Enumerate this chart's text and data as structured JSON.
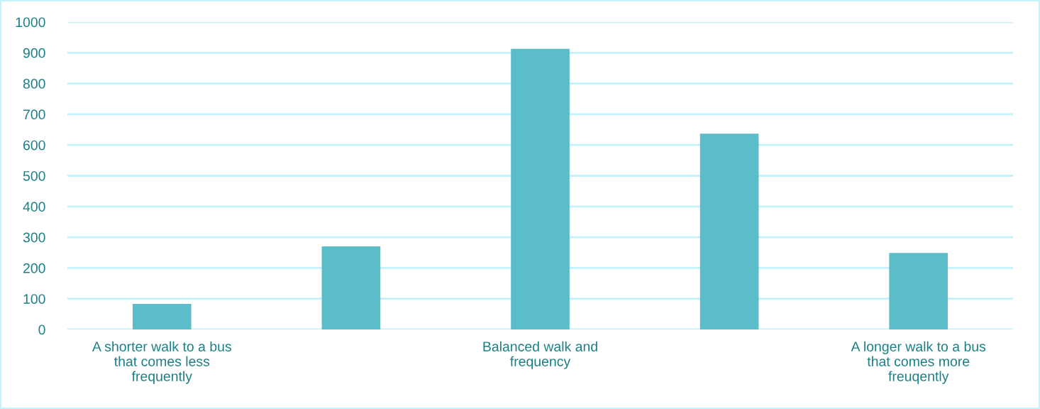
{
  "chart_data": {
    "type": "bar",
    "categories": [
      "A shorter walk to a bus\nthat comes less\nfrequently",
      null,
      "Balanced walk and\nfrequency",
      null,
      "A longer walk to a bus\nthat comes more\nfreuqently"
    ],
    "values": [
      83,
      270,
      913,
      637,
      249
    ],
    "color": "#5bbdc9",
    "ylim": [
      0,
      1000
    ],
    "yticks": [
      0,
      100,
      200,
      300,
      400,
      500,
      600,
      700,
      800,
      900,
      1000
    ],
    "grid": "y"
  }
}
